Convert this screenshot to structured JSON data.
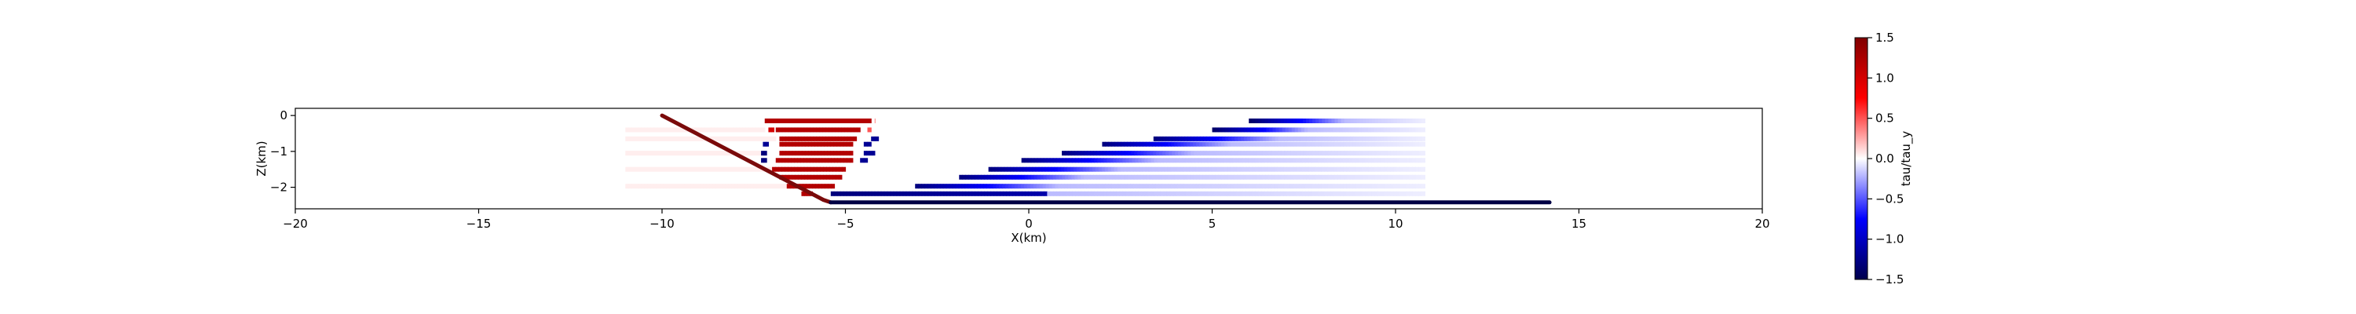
{
  "chart_data": {
    "type": "line",
    "xlabel": "X(km)",
    "ylabel": "Z(km)",
    "xlim": [
      -20,
      20
    ],
    "ylim": [
      -2.6,
      0.2
    ],
    "xticks": [
      -20,
      -15,
      -10,
      -5,
      0,
      5,
      10,
      15,
      20
    ],
    "yticks": [
      0,
      -1,
      -2
    ],
    "grid": false,
    "colorbar": {
      "label": "tau/tau_y",
      "range": [
        -1.5,
        1.5
      ],
      "ticks": [
        1.5,
        1.0,
        0.5,
        0.0,
        -0.5,
        -1.0,
        -1.5
      ],
      "colormap": "seismic",
      "colors": [
        "#00004c",
        "#0000ff",
        "#ffffff",
        "#ff0000",
        "#800000"
      ]
    },
    "fault": {
      "x": [
        -10.0,
        -5.6,
        -5.4,
        14.2
      ],
      "y": [
        0.0,
        -2.35,
        -2.42,
        -2.42
      ],
      "colors": [
        "#7a0a0a",
        "#000044"
      ]
    },
    "series": [
      {
        "y": -0.15,
        "segments": [
          [
            -7.2,
            -4.3,
            1.2,
            1.2
          ],
          [
            -4.2,
            -4.2,
            0.6,
            0.6
          ],
          [
            6.0,
            8.6,
            -1.4,
            -0.2
          ],
          [
            8.6,
            10.8,
            -0.2,
            -0.05
          ]
        ]
      },
      {
        "y": -0.4,
        "segments": [
          [
            -11.0,
            -7.2,
            0.05,
            0.05
          ],
          [
            -7.1,
            -6.95,
            1.0,
            1.0
          ],
          [
            -6.9,
            -4.6,
            1.2,
            1.2
          ],
          [
            -4.4,
            -4.3,
            0.5,
            0.5
          ],
          [
            5.0,
            7.6,
            -1.4,
            -0.2
          ],
          [
            7.6,
            10.8,
            -0.2,
            -0.05
          ]
        ]
      },
      {
        "y": -0.65,
        "segments": [
          [
            -11.0,
            -6.9,
            0.05,
            0.05
          ],
          [
            -6.8,
            -4.7,
            1.2,
            1.2
          ],
          [
            -4.3,
            -4.1,
            -1.2,
            -1.2
          ],
          [
            3.4,
            6.8,
            -1.3,
            -0.2
          ],
          [
            6.8,
            10.8,
            -0.2,
            -0.05
          ]
        ]
      },
      {
        "y": -0.8,
        "segments": [
          [
            -7.25,
            -7.1,
            -1.2,
            -1.2
          ],
          [
            -6.8,
            -4.8,
            1.2,
            1.2
          ],
          [
            -4.5,
            -4.3,
            -1.2,
            -1.2
          ],
          [
            2.0,
            5.5,
            -1.3,
            -0.2
          ],
          [
            5.5,
            10.8,
            -0.2,
            -0.05
          ]
        ]
      },
      {
        "y": -1.05,
        "segments": [
          [
            -11.0,
            -7.3,
            0.05,
            0.05
          ],
          [
            -7.3,
            -7.15,
            -1.3,
            -1.3
          ],
          [
            -6.8,
            -4.8,
            1.2,
            1.2
          ],
          [
            -4.5,
            -4.2,
            -1.2,
            -1.2
          ],
          [
            0.9,
            4.5,
            -1.3,
            -0.2
          ],
          [
            4.5,
            10.8,
            -0.2,
            -0.05
          ]
        ]
      },
      {
        "y": -1.25,
        "segments": [
          [
            -7.3,
            -7.15,
            -1.3,
            -1.3
          ],
          [
            -6.9,
            -4.8,
            1.2,
            1.2
          ],
          [
            -4.6,
            -4.4,
            -1.2,
            -1.2
          ],
          [
            -0.2,
            3.5,
            -1.3,
            -0.2
          ],
          [
            3.5,
            10.8,
            -0.2,
            -0.05
          ]
        ]
      },
      {
        "y": -1.5,
        "segments": [
          [
            -11.0,
            -7.0,
            0.05,
            0.05
          ],
          [
            -7.0,
            -5.0,
            1.2,
            1.2
          ],
          [
            -1.1,
            2.5,
            -1.3,
            -0.2
          ],
          [
            2.5,
            10.8,
            -0.2,
            -0.05
          ]
        ]
      },
      {
        "y": -1.72,
        "segments": [
          [
            -6.8,
            -5.1,
            1.2,
            1.2
          ],
          [
            -1.9,
            1.5,
            -1.3,
            -0.2
          ],
          [
            1.5,
            10.8,
            -0.2,
            -0.05
          ]
        ]
      },
      {
        "y": -1.97,
        "segments": [
          [
            -11.0,
            -6.5,
            0.05,
            0.05
          ],
          [
            -6.6,
            -5.3,
            1.2,
            1.2
          ],
          [
            -3.1,
            0.8,
            -1.3,
            -0.2
          ],
          [
            0.8,
            10.8,
            -0.2,
            -0.05
          ]
        ]
      },
      {
        "y": -2.18,
        "segments": [
          [
            -6.2,
            -5.9,
            1.2,
            1.2
          ],
          [
            -5.4,
            0.5,
            -1.3,
            -1.1
          ],
          [
            0.5,
            10.8,
            -0.2,
            -0.05
          ]
        ]
      }
    ]
  }
}
